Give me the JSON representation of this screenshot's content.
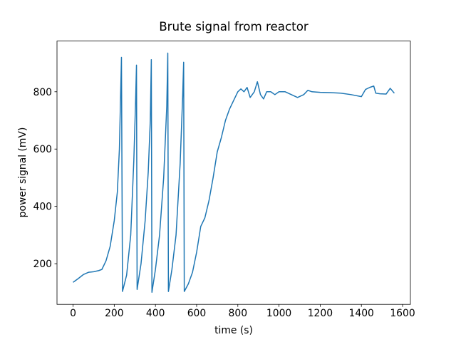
{
  "chart_data": {
    "type": "line",
    "title": "Brute signal from reactor",
    "x_label": "time (s)",
    "y_label": "power signal (mV)",
    "color": "#1f77b4",
    "x": [
      0,
      25,
      50,
      75,
      100,
      125,
      140,
      160,
      180,
      200,
      215,
      225,
      235,
      240,
      260,
      280,
      295,
      303,
      308,
      311,
      330,
      350,
      365,
      375,
      380,
      383,
      400,
      420,
      440,
      455,
      460,
      463,
      480,
      500,
      520,
      532,
      537,
      540,
      560,
      580,
      600,
      620,
      640,
      660,
      680,
      700,
      720,
      740,
      760,
      780,
      800,
      815,
      830,
      845,
      860,
      880,
      895,
      910,
      925,
      940,
      960,
      980,
      1000,
      1030,
      1060,
      1090,
      1120,
      1140,
      1160,
      1200,
      1250,
      1300,
      1350,
      1400,
      1420,
      1440,
      1460,
      1470,
      1490,
      1520,
      1540,
      1560
    ],
    "values": [
      135,
      148,
      162,
      170,
      172,
      176,
      180,
      210,
      260,
      350,
      450,
      600,
      920,
      103,
      160,
      300,
      560,
      750,
      893,
      110,
      200,
      350,
      520,
      700,
      912,
      100,
      180,
      300,
      500,
      750,
      935,
      103,
      180,
      300,
      550,
      780,
      903,
      103,
      130,
      170,
      240,
      330,
      360,
      420,
      500,
      590,
      640,
      700,
      740,
      770,
      800,
      810,
      800,
      815,
      780,
      800,
      835,
      790,
      775,
      800,
      800,
      790,
      800,
      800,
      790,
      780,
      790,
      805,
      800,
      798,
      797,
      795,
      790,
      783,
      808,
      815,
      820,
      795,
      793,
      792,
      812,
      795
    ],
    "xlim": [
      -78,
      1638
    ],
    "ylim": [
      58,
      977
    ],
    "xticks": [
      0,
      200,
      400,
      600,
      800,
      1000,
      1200,
      1400,
      1600
    ],
    "yticks": [
      200,
      400,
      600,
      800
    ]
  }
}
